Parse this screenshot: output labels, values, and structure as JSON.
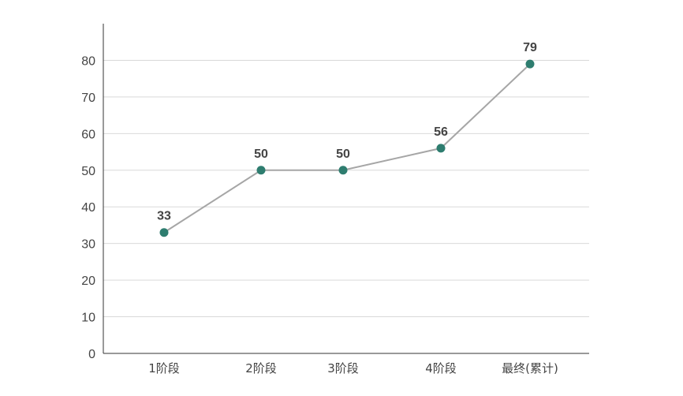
{
  "chart_data": {
    "type": "line",
    "title": "",
    "xlabel": "",
    "ylabel": "",
    "categories": [
      "1阶段",
      "2阶段",
      "3阶段",
      "4阶段",
      "最终(累计)"
    ],
    "series": [
      {
        "values": [
          33,
          50,
          50,
          56,
          79
        ],
        "data_labels": [
          "33",
          "50",
          "50",
          "56",
          "79"
        ]
      }
    ],
    "ylim": [
      0,
      90
    ],
    "yticks": [
      0,
      10,
      20,
      30,
      40,
      50,
      60,
      70,
      80
    ],
    "grid": true,
    "legend": "none"
  },
  "style": {
    "line_color": "#a6a6a6",
    "marker_color": "#2e7d6f",
    "grid_color": "#d9d9d9",
    "axis_color": "#333333",
    "text_color": "#444444"
  }
}
